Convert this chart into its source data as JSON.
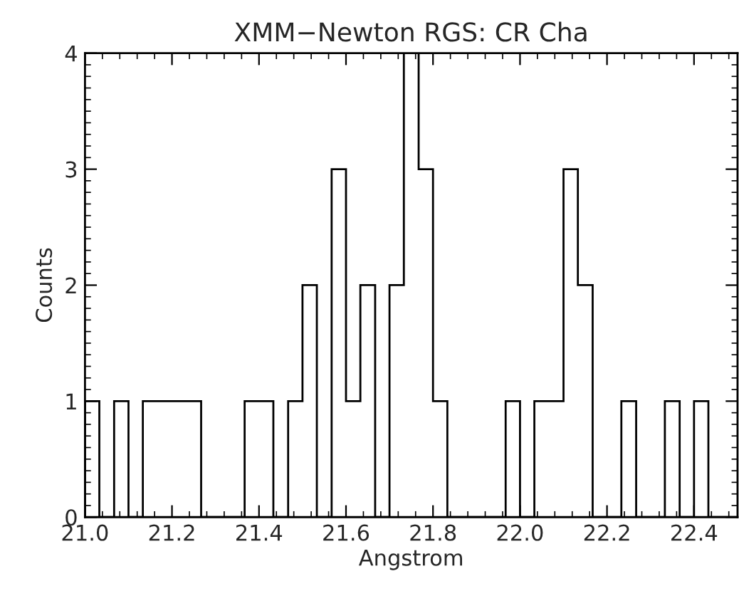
{
  "chart_data": {
    "type": "histogram",
    "title": "XMM−Newton RGS: CR Cha",
    "xlabel": "Angstrom",
    "ylabel": "Counts",
    "bins": [
      21.0,
      21.033,
      21.067,
      21.1,
      21.133,
      21.167,
      21.2,
      21.233,
      21.267,
      21.3,
      21.333,
      21.367,
      21.4,
      21.433,
      21.467,
      21.5,
      21.533,
      21.567,
      21.6,
      21.633,
      21.667,
      21.7,
      21.733,
      21.767,
      21.8,
      21.833,
      21.867,
      21.9,
      21.933,
      21.967,
      22.0,
      22.033,
      22.067,
      22.1,
      22.133,
      22.167,
      22.2,
      22.233,
      22.267,
      22.3,
      22.333,
      22.367,
      22.4,
      22.433,
      22.467,
      22.5
    ],
    "values": [
      1,
      0,
      1,
      0,
      1,
      1,
      1,
      1,
      0,
      0,
      0,
      1,
      1,
      0,
      1,
      2,
      0,
      3,
      1,
      2,
      0,
      2,
      4,
      3,
      1,
      0,
      0,
      0,
      0,
      1,
      0,
      1,
      1,
      3,
      2,
      0,
      0,
      1,
      0,
      0,
      1,
      0,
      1,
      0,
      0
    ],
    "color": "#000000",
    "xlim": [
      21.0,
      22.5
    ],
    "xticks": [
      {
        "value": 21.0,
        "label": "21.0"
      },
      21.2,
      21.4,
      21.6,
      21.8,
      {
        "value": 22.0,
        "label": "22.0"
      },
      22.2,
      22.4
    ],
    "ylim": [
      0,
      4
    ],
    "yticks": [
      0,
      1,
      2,
      3,
      4
    ],
    "grid": false
  }
}
